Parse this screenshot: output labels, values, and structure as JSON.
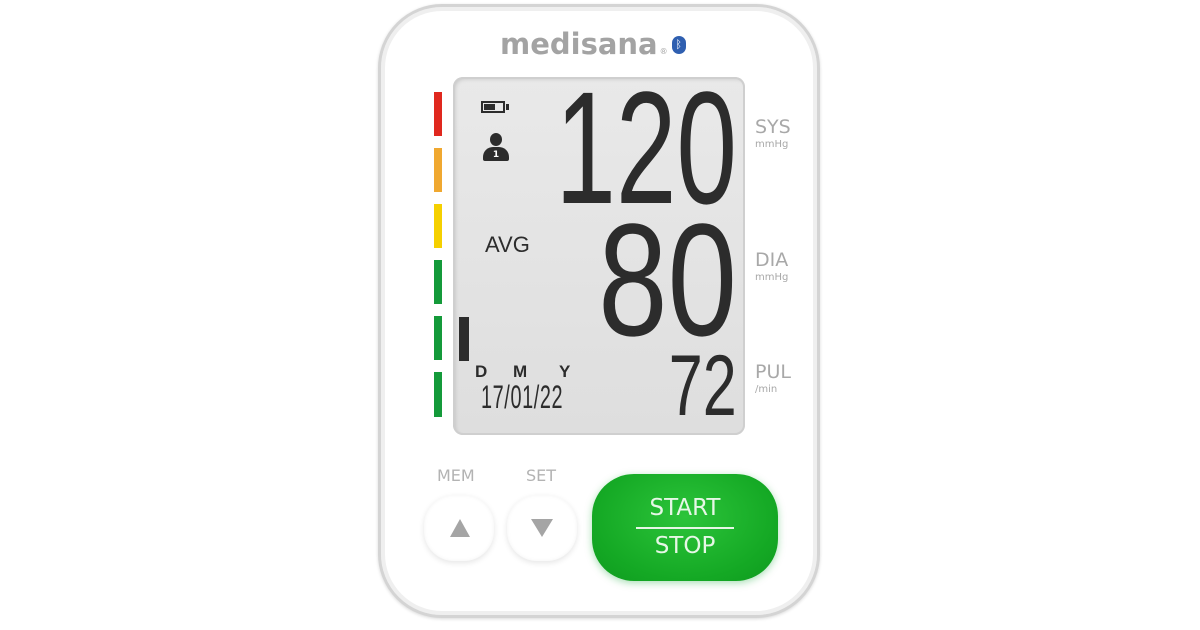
{
  "brand": {
    "name": "medisana",
    "registered": "®",
    "bluetooth_icon": "bluetooth-icon",
    "color": "#a3a3a3"
  },
  "indicator_bars": [
    {
      "color": "#e0281e"
    },
    {
      "color": "#f0a830"
    },
    {
      "color": "#f5d000"
    },
    {
      "color": "#149a3a"
    },
    {
      "color": "#149a3a"
    },
    {
      "color": "#149a3a"
    }
  ],
  "display": {
    "systolic": "120",
    "diastolic": "80",
    "pulse": "72",
    "avg_label": "AVG",
    "user_number": "1",
    "date_labels": {
      "d": "D",
      "m": "M",
      "y": "Y"
    },
    "date": "17/01/22",
    "battery_icon": "battery-icon",
    "user_icon": "user-icon"
  },
  "units": {
    "sys": {
      "label": "SYS",
      "unit": "mmHg"
    },
    "dia": {
      "label": "DIA",
      "unit": "mmHg"
    },
    "pul": {
      "label": "PUL",
      "unit": "/min"
    }
  },
  "buttons": {
    "mem": {
      "label": "MEM",
      "icon": "triangle-up-icon"
    },
    "set": {
      "label": "SET",
      "icon": "triangle-down-icon"
    },
    "start_stop": {
      "top": "START",
      "bottom": "STOP",
      "color": "#17ad27"
    }
  }
}
